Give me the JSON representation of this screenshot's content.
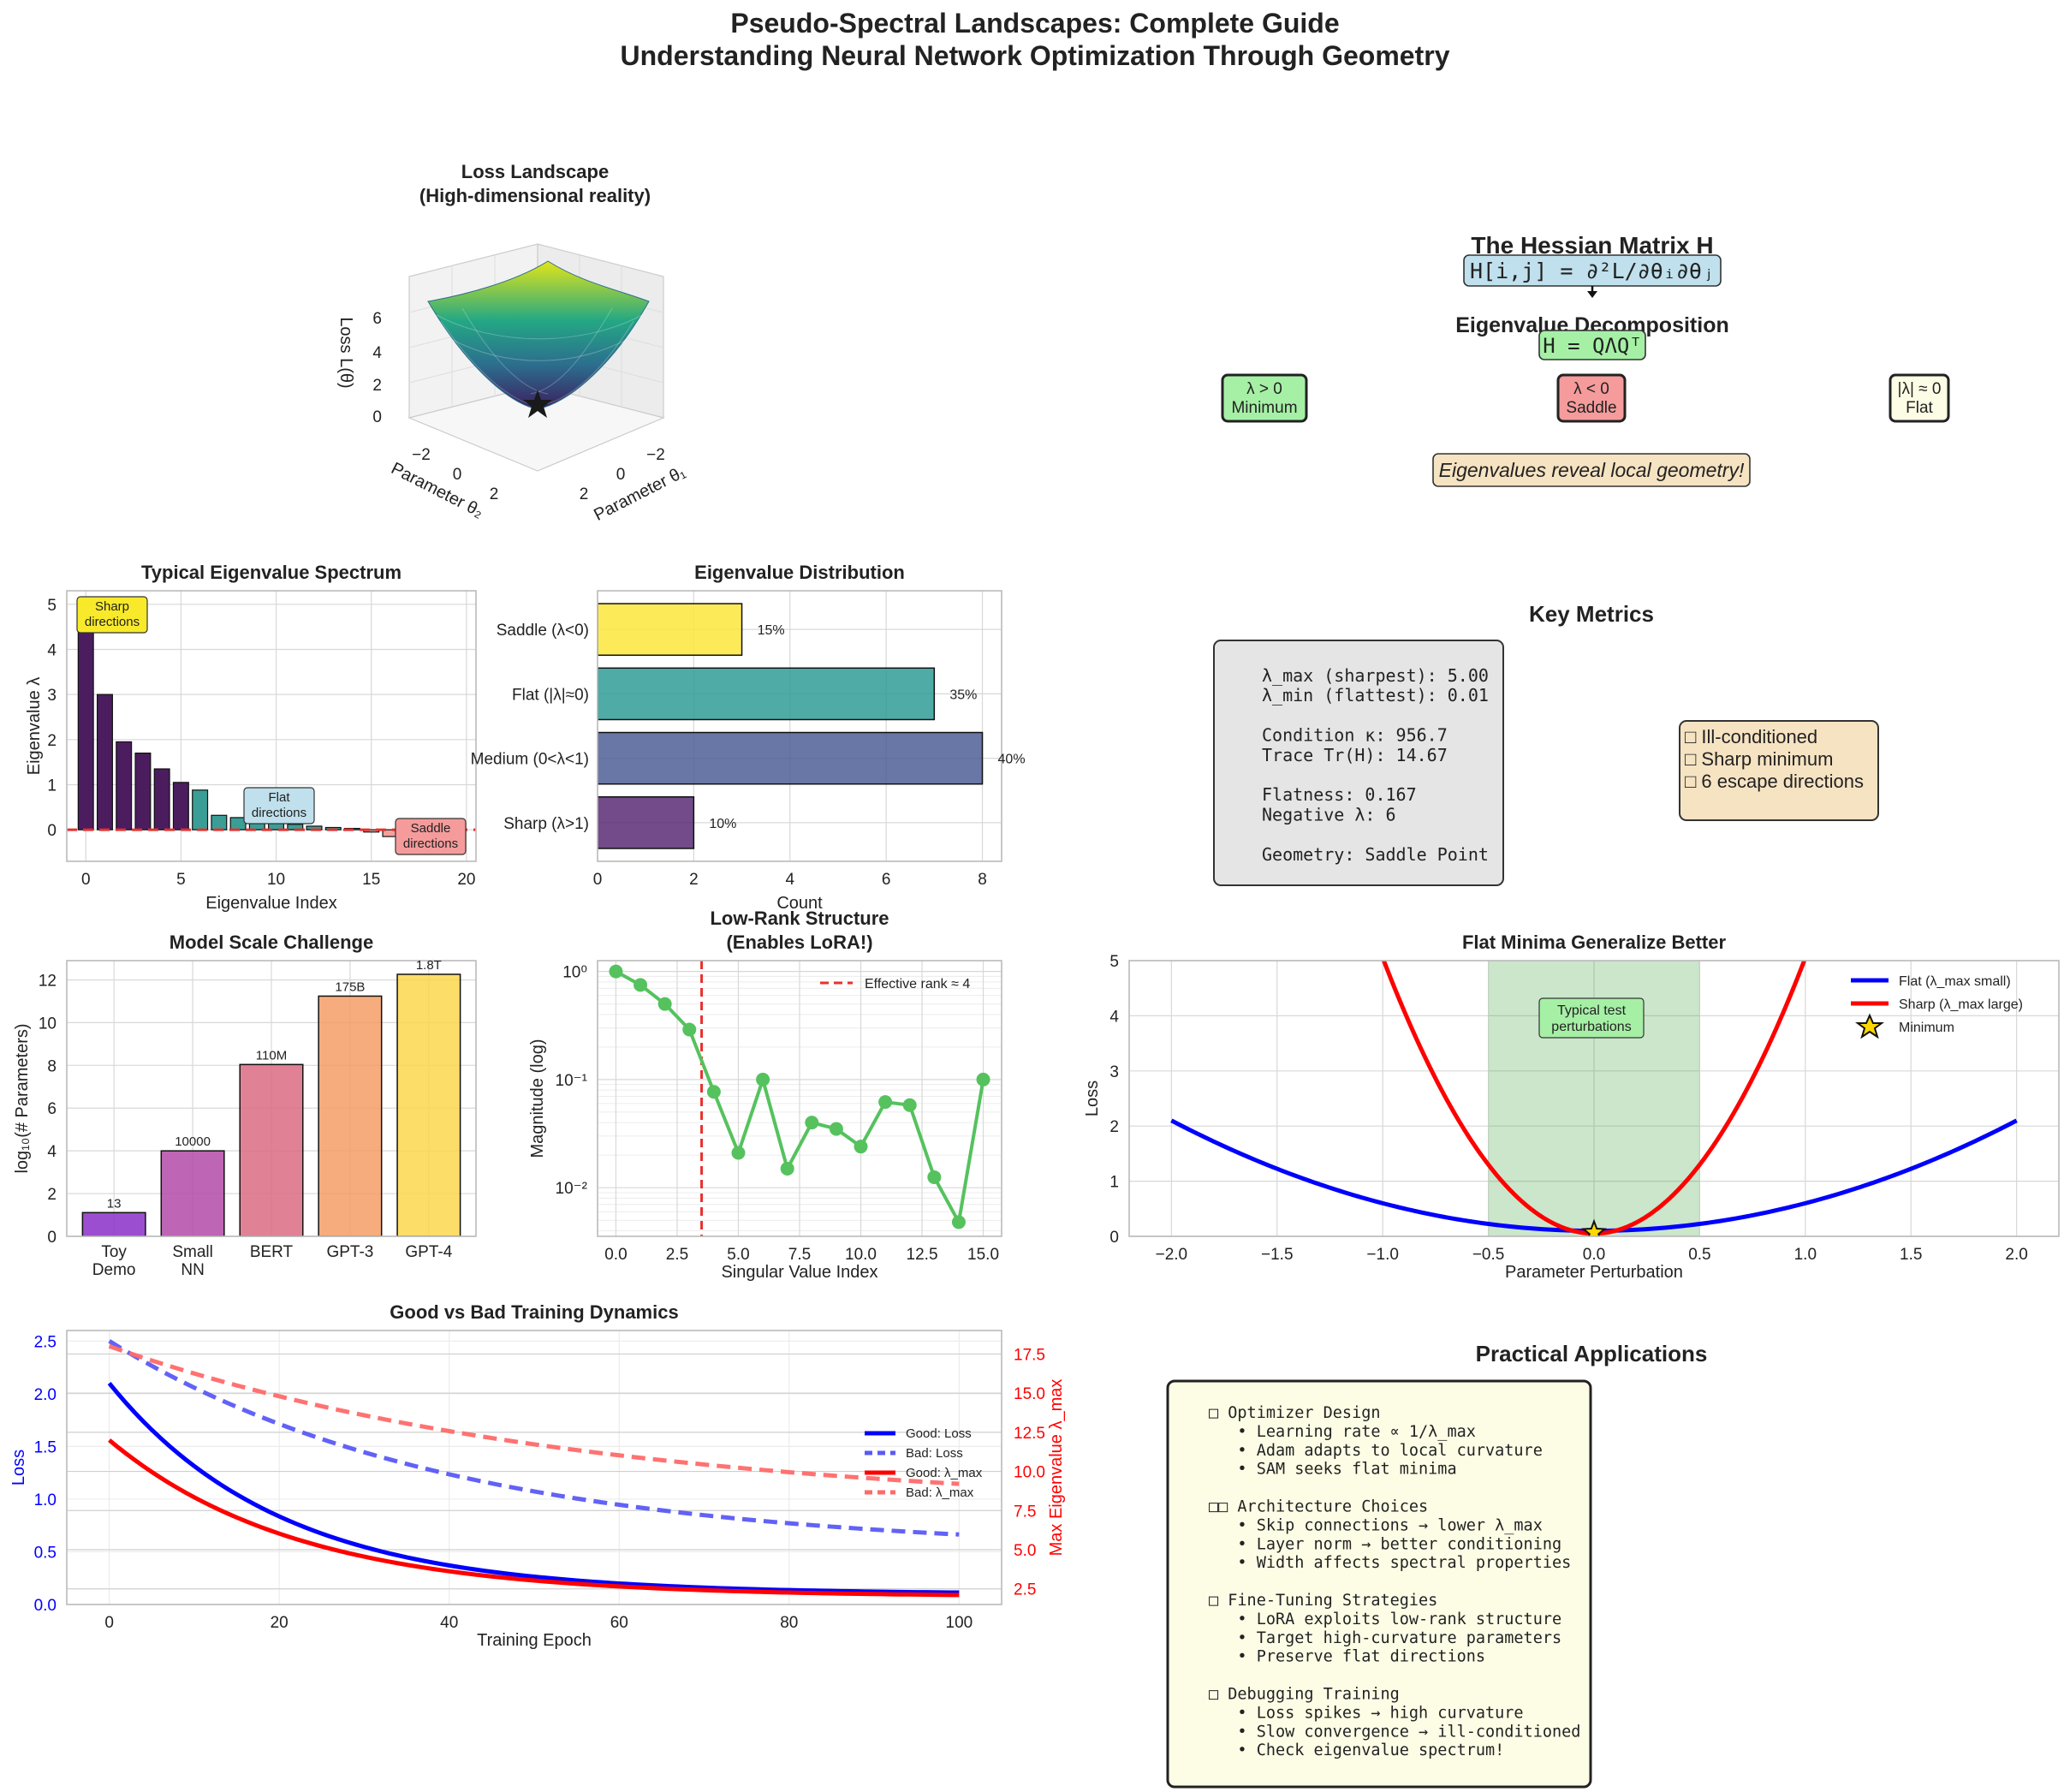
{
  "figure": {
    "title_line1": "Pseudo-Spectral Landscapes: Complete Guide",
    "title_line2": "Understanding Neural Network Optimization Through Geometry"
  },
  "chart_data": [
    {
      "id": "loss_landscape",
      "type": "surface3d",
      "title_line1": "Loss Landscape",
      "title_line2": "(High-dimensional reality)",
      "xlabel": "Parameter θ₁",
      "ylabel": "Parameter θ₂",
      "zlabel": "Loss L(θ)",
      "x_ticks": [
        "−2",
        "0",
        "2"
      ],
      "y_ticks": [
        "−2",
        "0",
        "2"
      ],
      "z_ticks": [
        "0",
        "2",
        "4",
        "6"
      ],
      "marker": "minimum star at (0, 0)"
    },
    {
      "id": "eigen_spectrum",
      "type": "bar",
      "title": "Typical Eigenvalue Spectrum",
      "xlabel": "Eigenvalue Index",
      "ylabel": "Eigenvalue λ",
      "indices": [
        0,
        1,
        2,
        3,
        4,
        5,
        6,
        7,
        8,
        9,
        10,
        11,
        12,
        13,
        14,
        15,
        16,
        17,
        18,
        19
      ],
      "values": [
        5.0,
        3.0,
        1.95,
        1.7,
        1.35,
        1.05,
        0.88,
        0.32,
        0.27,
        0.22,
        0.18,
        0.12,
        0.08,
        0.05,
        0.03,
        -0.05,
        -0.15,
        -0.25,
        -0.2,
        -0.3
      ],
      "colors": [
        "#4b1d5e",
        "#4b1d5e",
        "#4b1d5e",
        "#4b1d5e",
        "#4b1d5e",
        "#4b1d5e",
        "#3a9e96",
        "#3a9e96",
        "#3a9e96",
        "#3a9e96",
        "#3a9e96",
        "#3a9e96",
        "#3a9e96",
        "#3a9e96",
        "#3a9e96",
        "#f5a19b",
        "#f5a19b",
        "#f5a19b",
        "#f5a19b",
        "#f5a19b"
      ],
      "xlim": [
        -1,
        20.5
      ],
      "ylim": [
        -0.7,
        5.3
      ],
      "x_ticks": [
        0,
        5,
        10,
        15,
        20
      ],
      "y_ticks": [
        0,
        1,
        2,
        3,
        4,
        5
      ],
      "annotations": [
        "Sharp\ndirections",
        "Flat\ndirections",
        "Saddle\ndirections"
      ]
    },
    {
      "id": "eigen_distribution",
      "type": "barh",
      "title": "Eigenvalue Distribution",
      "xlabel": "Count",
      "categories": [
        "Sharp (λ>1)",
        "Medium (0<λ<1)",
        "Flat (|λ|≈0)",
        "Saddle (λ<0)"
      ],
      "values": [
        2,
        8,
        7,
        3
      ],
      "percent_labels": [
        "10%",
        "40%",
        "35%",
        "15%"
      ],
      "colors": [
        "#5a2a75",
        "#4d5f95",
        "#2f9c95",
        "#fde63c"
      ],
      "xlim": [
        0,
        8.4
      ],
      "x_ticks": [
        0,
        2,
        4,
        6,
        8
      ]
    },
    {
      "id": "model_scale",
      "type": "bar",
      "title": "Model Scale Challenge",
      "ylabel": "log₁₀(# Parameters)",
      "categories": [
        "Toy\nDemo",
        "Small\nNN",
        "BERT",
        "GPT-3",
        "GPT-4"
      ],
      "values": [
        1.11,
        4.0,
        8.04,
        11.24,
        12.26
      ],
      "value_labels": [
        "13",
        "10000",
        "110M",
        "175B",
        "1.8T"
      ],
      "colors": [
        "#8b2fc9",
        "#b44aa9",
        "#dc6b82",
        "#f59d66",
        "#fcd74c"
      ],
      "ylim": [
        0,
        12.9
      ],
      "y_ticks": [
        0,
        2,
        4,
        6,
        8,
        10,
        12
      ]
    },
    {
      "id": "low_rank",
      "type": "line",
      "scale_y": "log",
      "title_line1": "Low-Rank Structure",
      "title_line2": "(Enables LoRA!)",
      "xlabel": "Singular Value Index",
      "ylabel": "Magnitude (log)",
      "x": [
        0,
        1,
        2,
        3,
        4,
        5,
        6,
        7,
        8,
        9,
        10,
        11,
        12,
        13,
        14,
        15
      ],
      "y": [
        1.0,
        0.75,
        0.5,
        0.29,
        0.077,
        0.021,
        0.1,
        0.015,
        0.04,
        0.035,
        0.024,
        0.062,
        0.058,
        0.0125,
        0.0048,
        0.1
      ],
      "xlim": [
        -0.75,
        15.75
      ],
      "ylim_log10": [
        -2.45,
        0.1
      ],
      "x_ticks": [
        "0.0",
        "2.5",
        "5.0",
        "7.5",
        "10.0",
        "12.5",
        "15.0"
      ],
      "y_ticks": [
        "10⁰",
        "10⁻¹",
        "10⁻²"
      ],
      "vline_x": 3.5,
      "legend": "Effective rank ≈ 4",
      "color": "#55c25e"
    },
    {
      "id": "flat_vs_sharp",
      "type": "line",
      "title": "Flat Minima Generalize Better",
      "xlabel": "Parameter Perturbation",
      "ylabel": "Loss",
      "xlim": [
        -2.2,
        2.2
      ],
      "ylim": [
        0,
        5
      ],
      "x_ticks": [
        "−2.0",
        "−1.5",
        "−1.0",
        "−0.5",
        "0.0",
        "0.5",
        "1.0",
        "1.5",
        "2.0"
      ],
      "y_ticks": [
        0,
        1,
        2,
        3,
        4,
        5
      ],
      "series": [
        {
          "name": "Flat (λ_max small)",
          "formula": "0.5 * 1.0 * x^2 + 0.1",
          "color": "#0000ff"
        },
        {
          "name": "Sharp (λ_max large)",
          "formula": "0.5 * 10 * x^2 + 0.05",
          "color": "#ff0000"
        }
      ],
      "minimum_label": "Minimum",
      "shaded_range": [
        -0.5,
        0.5
      ],
      "annotation": "Typical test\nperturbations"
    },
    {
      "id": "training_dynamics",
      "type": "line",
      "title": "Good vs Bad Training Dynamics",
      "xlabel": "Training Epoch",
      "ylabel_left": "Loss",
      "ylabel_right": "Max Eigenvalue λ_max",
      "xlim": [
        -5,
        105
      ],
      "ylim_left": [
        0,
        2.6
      ],
      "ylim_right": [
        1.5,
        19.0
      ],
      "x_ticks": [
        0,
        20,
        40,
        60,
        80,
        100
      ],
      "y_ticks_left": [
        "0.0",
        "0.5",
        "1.0",
        "1.5",
        "2.0",
        "2.5"
      ],
      "y_ticks_right": [
        "2.5",
        "5.0",
        "7.5",
        "10.0",
        "12.5",
        "15.0",
        "17.5"
      ],
      "series": [
        {
          "name": "Good: Loss",
          "axis": "left",
          "start": 2.1,
          "end": 0.1,
          "tau": 20,
          "style": "solid",
          "color": "#0000ff"
        },
        {
          "name": "Bad: Loss",
          "axis": "left",
          "start": 2.5,
          "end": 0.5,
          "tau": 40,
          "style": "dashed",
          "color": "#5a5af5"
        },
        {
          "name": "Good: λ_max",
          "axis": "right",
          "start": 12.0,
          "end": 2.0,
          "tau": 22,
          "style": "solid",
          "color": "#ff0000"
        },
        {
          "name": "Bad: λ_max",
          "axis": "right",
          "start": 18.0,
          "end": 7.5,
          "tau": 55,
          "style": "dashed",
          "color": "#ff6a6a"
        }
      ]
    }
  ],
  "hessian_panel": {
    "title": "The Hessian Matrix H",
    "formula": "H[i,j] = ∂²L/∂θᵢ∂θⱼ",
    "decomp_title": "Eigenvalue Decomposition",
    "decomp_formula": "H = QΛQᵀ",
    "boxes": [
      {
        "line1": "λ > 0",
        "line2": "Minimum",
        "color": "#a6f0a6"
      },
      {
        "line1": "λ < 0",
        "line2": "Saddle",
        "color": "#f59b9b"
      },
      {
        "line1": "|λ| ≈ 0",
        "line2": "Flat",
        "color": "#fdfde6"
      }
    ],
    "note": "Eigenvalues reveal local geometry!"
  },
  "key_metrics": {
    "title": "Key Metrics",
    "lines": [
      "λ_max (sharpest): 5.00",
      "λ_min (flattest): 0.01",
      "",
      "Condition κ: 956.7",
      "Trace Tr(H): 14.67",
      "",
      "Flatness: 0.167",
      "Negative λ: 6",
      "",
      "Geometry: Saddle Point"
    ],
    "warnings": [
      "□ Ill-conditioned",
      "□ Sharp minimum",
      "□ 6 escape directions"
    ]
  },
  "applications": {
    "title": "Practical Applications",
    "lines": [
      "□ Optimizer Design",
      "   • Learning rate ∝ 1/λ_max",
      "   • Adam adapts to local curvature",
      "   • SAM seeks flat minima",
      "",
      "□□ Architecture Choices",
      "   • Skip connections → lower λ_max",
      "   • Layer norm → better conditioning",
      "   • Width affects spectral properties",
      "",
      "□ Fine-Tuning Strategies",
      "   • LoRA exploits low-rank structure",
      "   • Target high-curvature parameters",
      "   • Preserve flat directions",
      "",
      "□ Debugging Training",
      "   • Loss spikes → high curvature",
      "   • Slow convergence → ill-conditioned",
      "   • Check eigenvalue spectrum!"
    ]
  }
}
